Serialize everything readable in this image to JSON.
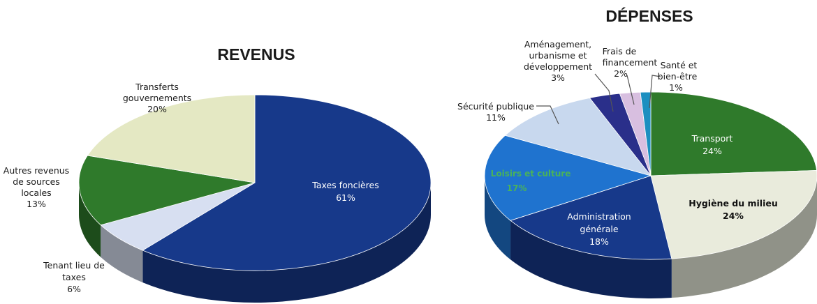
{
  "chart_data": [
    {
      "type": "pie",
      "title": "REVENUS",
      "slices": [
        {
          "label": "Taxes foncières",
          "value": 61,
          "value_label": "61%",
          "color": "#17398a"
        },
        {
          "label": "Tenant lieu de taxes",
          "value": 6,
          "value_label": "6%",
          "color": "#d7dff1"
        },
        {
          "label": "Autres revenus de sources locales",
          "value": 13,
          "value_label": "13%",
          "color": "#2f7a2b"
        },
        {
          "label": "Transferts gouvernements",
          "value": 20,
          "value_label": "20%",
          "color": "#e4e8c3"
        }
      ]
    },
    {
      "type": "pie",
      "title": "DÉPENSES",
      "slices": [
        {
          "label": "Transport",
          "value": 24,
          "value_label": "24%",
          "color": "#2f7a2b"
        },
        {
          "label": "Hygiène du milieu",
          "value": 24,
          "value_label": "24%",
          "color": "#e9ebdc"
        },
        {
          "label": "Administration générale",
          "value": 18,
          "value_label": "18%",
          "color": "#17398a"
        },
        {
          "label": "Loisirs et culture",
          "value": 17,
          "value_label": "17%",
          "color": "#1f73cf"
        },
        {
          "label": "Sécurité publique",
          "value": 11,
          "value_label": "11%",
          "color": "#c8d8ee"
        },
        {
          "label": "Aménagement, urbanisme et développement",
          "value": 3,
          "value_label": "3%",
          "color": "#2a2f8a"
        },
        {
          "label": "Frais de financement",
          "value": 2,
          "value_label": "2%",
          "color": "#d8bfe0"
        },
        {
          "label": "Santé et bien-être",
          "value": 1,
          "value_label": "1%",
          "color": "#1c8fc0"
        }
      ]
    }
  ],
  "labels": {
    "rev_transferts": [
      "Transferts",
      "gouvernements",
      "20%"
    ],
    "rev_autres": [
      "Autres revenus",
      "de sources",
      "locales",
      "13%"
    ],
    "rev_tenant": [
      "Tenant lieu de",
      "taxes",
      "6%"
    ],
    "rev_taxes": [
      "Taxes foncières",
      "61%"
    ],
    "dep_amenagement": [
      "Aménagement,",
      "urbanisme et",
      "développement",
      "3%"
    ],
    "dep_frais": [
      "Frais de",
      "financement",
      "2%"
    ],
    "dep_sante": [
      "Santé et",
      "bien-être",
      "1%"
    ],
    "dep_securite": [
      "Sécurité publique",
      "11%"
    ],
    "dep_transport": [
      "Transport",
      "24%"
    ],
    "dep_hygiene": [
      "Hygiène du milieu",
      "24%"
    ],
    "dep_admin": [
      "Administration",
      "générale",
      "18%"
    ],
    "dep_loisirs": [
      "Loisirs et culture",
      "17%"
    ]
  }
}
